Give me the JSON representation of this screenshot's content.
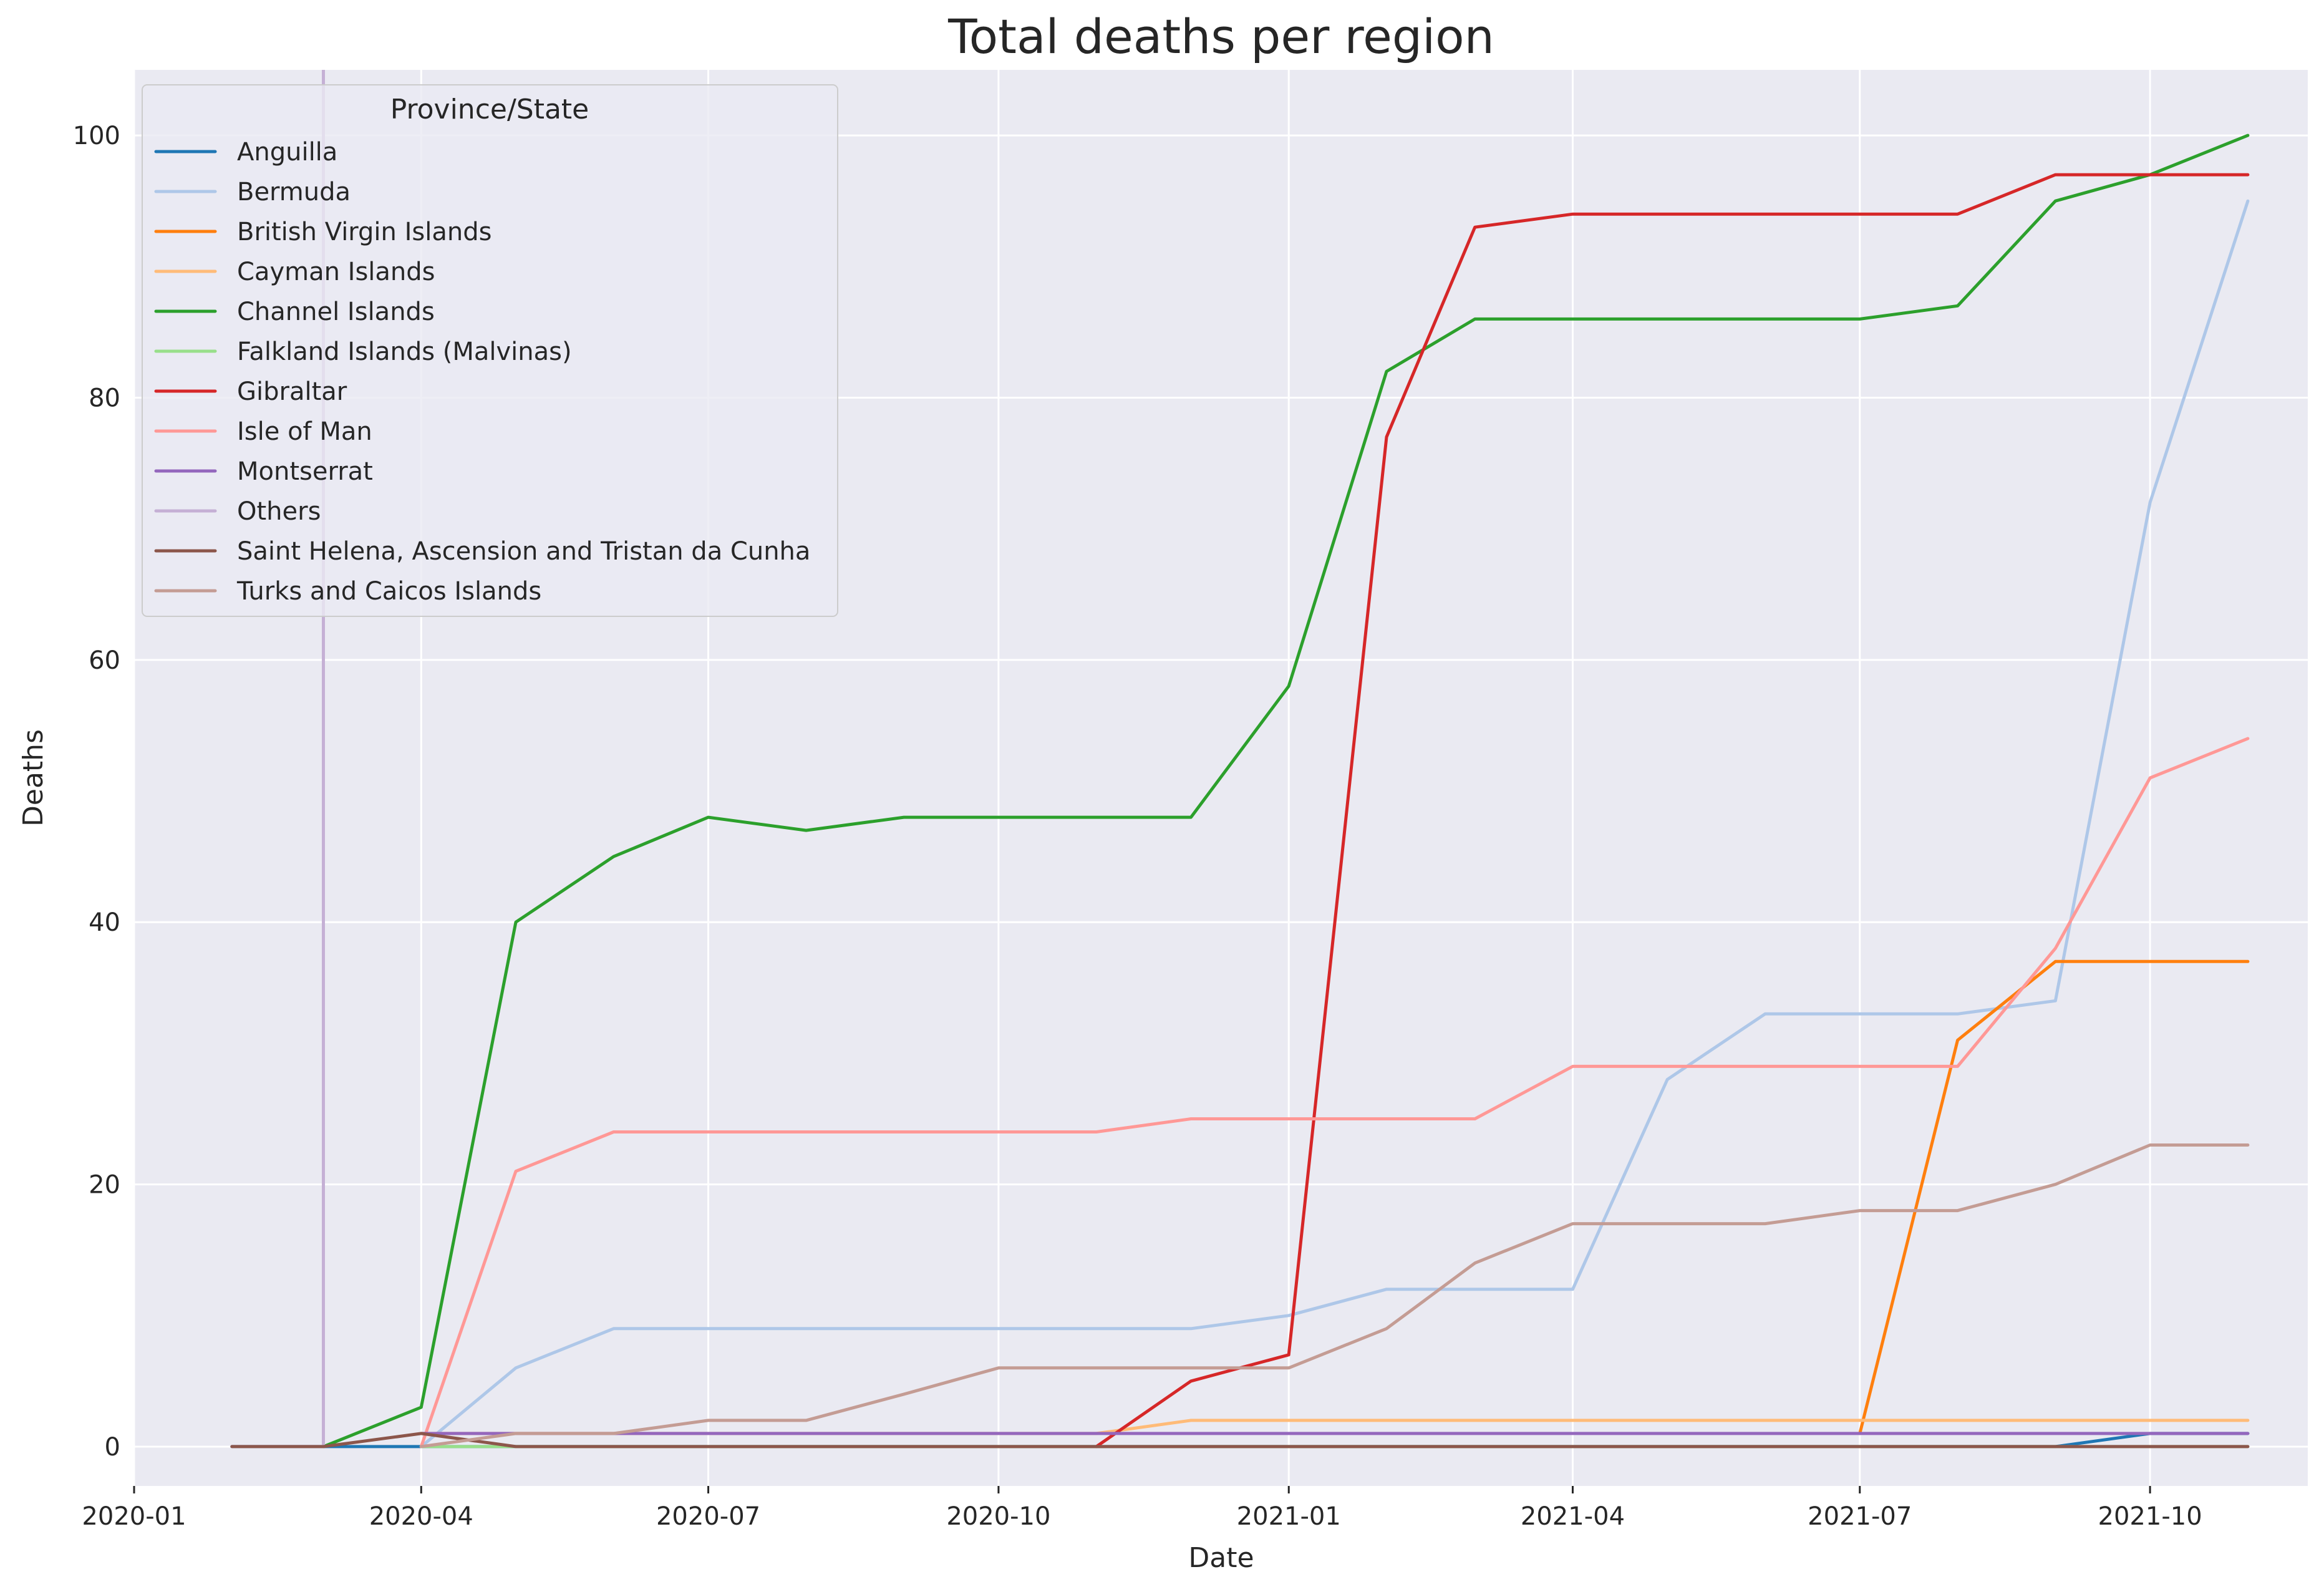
{
  "chart_data": {
    "type": "line",
    "title": "Total deaths per region",
    "xlabel": "Date",
    "ylabel": "Deaths",
    "xlim": [
      "2020-01-01",
      "2021-11-20"
    ],
    "ylim": [
      -3,
      105
    ],
    "x_ticks": [
      "2020-01",
      "2020-04",
      "2020-07",
      "2020-10",
      "2021-01",
      "2021-04",
      "2021-07",
      "2021-10"
    ],
    "y_ticks": [
      0,
      20,
      40,
      60,
      80,
      100
    ],
    "grid": true,
    "legend_title": "Province/State",
    "legend_position": "upper left",
    "x": [
      "2020-02-01",
      "2020-03-01",
      "2020-04-01",
      "2020-05-01",
      "2020-06-01",
      "2020-07-01",
      "2020-08-01",
      "2020-09-01",
      "2020-10-01",
      "2020-11-01",
      "2020-12-01",
      "2021-01-01",
      "2021-02-01",
      "2021-03-01",
      "2021-04-01",
      "2021-05-01",
      "2021-06-01",
      "2021-07-01",
      "2021-08-01",
      "2021-09-01",
      "2021-10-01",
      "2021-11-01"
    ],
    "series": [
      {
        "name": "Anguilla",
        "color": "#1f77b4",
        "values": [
          0,
          0,
          0,
          0,
          0,
          0,
          0,
          0,
          0,
          0,
          0,
          0,
          0,
          0,
          0,
          0,
          0,
          0,
          0,
          0,
          1,
          1
        ]
      },
      {
        "name": "Bermuda",
        "color": "#aec7e8",
        "values": [
          null,
          null,
          0,
          6,
          9,
          9,
          9,
          9,
          9,
          9,
          9,
          10,
          12,
          12,
          12,
          28,
          33,
          33,
          33,
          34,
          72,
          95
        ]
      },
      {
        "name": "British Virgin Islands",
        "color": "#ff7f0e",
        "values": [
          null,
          null,
          null,
          null,
          null,
          null,
          null,
          null,
          null,
          null,
          null,
          null,
          null,
          null,
          null,
          null,
          null,
          1,
          31,
          37,
          37,
          37
        ]
      },
      {
        "name": "Cayman Islands",
        "color": "#ffbb78",
        "values": [
          null,
          null,
          1,
          1,
          1,
          1,
          1,
          1,
          1,
          1,
          2,
          2,
          2,
          2,
          2,
          2,
          2,
          2,
          2,
          2,
          2,
          2
        ]
      },
      {
        "name": "Channel Islands",
        "color": "#2ca02c",
        "values": [
          null,
          0,
          3,
          40,
          45,
          48,
          47,
          48,
          48,
          48,
          48,
          58,
          82,
          86,
          86,
          86,
          86,
          86,
          87,
          95,
          97,
          100
        ]
      },
      {
        "name": "Falkland Islands (Malvinas)",
        "color": "#98df8a",
        "values": [
          null,
          null,
          0,
          0,
          0,
          0,
          0,
          0,
          0,
          0,
          0,
          0,
          0,
          0,
          0,
          0,
          0,
          0,
          0,
          0,
          0,
          0
        ]
      },
      {
        "name": "Gibraltar",
        "color": "#d62728",
        "values": [
          null,
          null,
          null,
          null,
          null,
          null,
          null,
          null,
          null,
          0,
          5,
          7,
          77,
          93,
          94,
          94,
          94,
          94,
          94,
          97,
          97,
          97
        ]
      },
      {
        "name": "Isle of Man",
        "color": "#ff9896",
        "values": [
          null,
          null,
          0,
          21,
          24,
          24,
          24,
          24,
          24,
          24,
          25,
          25,
          25,
          25,
          29,
          29,
          29,
          29,
          29,
          38,
          51,
          54
        ]
      },
      {
        "name": "Montserrat",
        "color": "#9467bd",
        "values": [
          null,
          null,
          1,
          1,
          1,
          1,
          1,
          1,
          1,
          1,
          1,
          1,
          1,
          1,
          1,
          1,
          1,
          1,
          1,
          1,
          1,
          1
        ]
      },
      {
        "name": "Others",
        "color": "#c5b0d5",
        "values": [
          0,
          0,
          null,
          null,
          null,
          null,
          null,
          null,
          null,
          null,
          null,
          null,
          null,
          null,
          null,
          null,
          null,
          null,
          null,
          null,
          null,
          null
        ],
        "spike": {
          "x": "2020-03-01",
          "from": 0,
          "to": 105
        }
      },
      {
        "name": "Saint Helena, Ascension and Tristan da Cunha",
        "color": "#8c564b",
        "values": [
          0,
          0,
          1,
          0,
          0,
          0,
          0,
          0,
          0,
          0,
          0,
          0,
          0,
          0,
          0,
          0,
          0,
          0,
          0,
          0,
          0,
          0
        ]
      },
      {
        "name": "Turks and Caicos Islands",
        "color": "#c49c94",
        "values": [
          null,
          null,
          0,
          1,
          1,
          2,
          2,
          4,
          6,
          6,
          6,
          6,
          9,
          14,
          17,
          17,
          17,
          18,
          18,
          20,
          23,
          23
        ]
      }
    ]
  }
}
